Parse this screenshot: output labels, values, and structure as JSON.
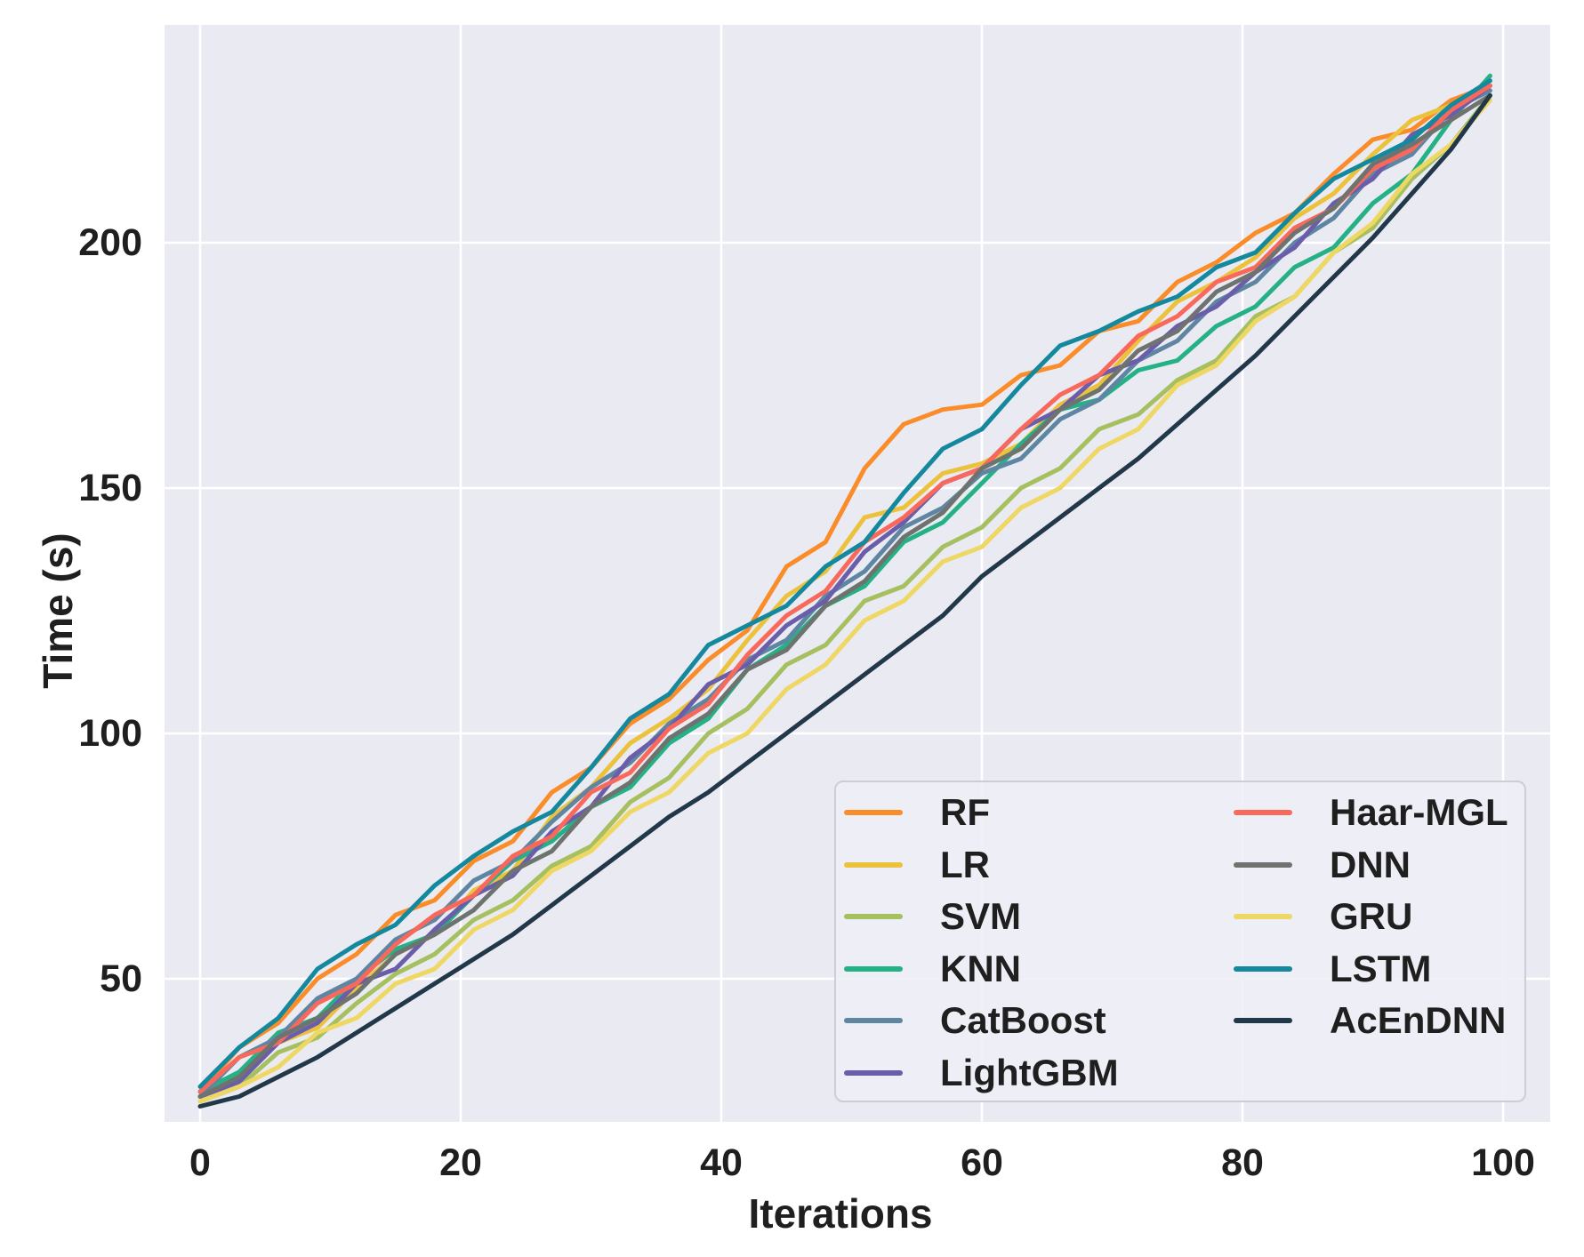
{
  "figure": {
    "plot_background": "#eaeaf2",
    "grid_color": "#ffffff",
    "text_color": "#1f1f1f",
    "outer_background": "#ffffff"
  },
  "chart_data": {
    "type": "line",
    "title": "",
    "xlabel": "Iterations",
    "ylabel": "Time (s)",
    "xlim": [
      -2.7,
      103.6
    ],
    "ylim": [
      21,
      244
    ],
    "xticks": [
      0,
      20,
      40,
      60,
      80,
      100
    ],
    "yticks": [
      50,
      100,
      150,
      200
    ],
    "grid": true,
    "legend_position": "lower right",
    "legend_columns": 2,
    "x": [
      0,
      3,
      6,
      9,
      12,
      15,
      18,
      21,
      24,
      27,
      30,
      33,
      36,
      39,
      42,
      45,
      48,
      51,
      54,
      57,
      60,
      63,
      66,
      69,
      72,
      75,
      78,
      81,
      84,
      87,
      90,
      93,
      96,
      99
    ],
    "series": [
      {
        "name": "RF",
        "color": "#fa8c29",
        "values": [
          27,
          36,
          41,
          50,
          55,
          63,
          66,
          74,
          78,
          88,
          93,
          102,
          107,
          115,
          121,
          134,
          139,
          154,
          163,
          166,
          167,
          173,
          175,
          182,
          184,
          192,
          196,
          202,
          206,
          214,
          221,
          223,
          229,
          232
        ]
      },
      {
        "name": "LR",
        "color": "#ecc23d",
        "values": [
          26,
          30,
          37,
          40,
          48,
          55,
          59,
          68,
          72,
          83,
          89,
          98,
          103,
          109,
          119,
          128,
          133,
          144,
          146,
          153,
          155,
          159,
          167,
          171,
          180,
          188,
          192,
          197,
          205,
          210,
          218,
          225,
          228,
          231
        ]
      },
      {
        "name": "SVM",
        "color": "#a6c060",
        "values": [
          25,
          28,
          35,
          38,
          45,
          51,
          55,
          62,
          66,
          73,
          77,
          86,
          91,
          100,
          105,
          114,
          118,
          127,
          130,
          138,
          142,
          150,
          154,
          162,
          165,
          172,
          176,
          185,
          189,
          198,
          203,
          213,
          220,
          230
        ]
      },
      {
        "name": "KNN",
        "color": "#25b186",
        "values": [
          27,
          31,
          39,
          42,
          50,
          56,
          59,
          67,
          74,
          78,
          85,
          89,
          98,
          103,
          113,
          118,
          126,
          130,
          139,
          143,
          151,
          159,
          166,
          168,
          174,
          176,
          183,
          187,
          195,
          199,
          208,
          214,
          225,
          234
        ]
      },
      {
        "name": "CatBoost",
        "color": "#5e86a3",
        "values": [
          26,
          34,
          38,
          46,
          50,
          58,
          62,
          70,
          74,
          82,
          89,
          94,
          102,
          107,
          115,
          119,
          128,
          133,
          142,
          146,
          153,
          156,
          164,
          168,
          176,
          180,
          188,
          192,
          200,
          205,
          214,
          218,
          227,
          231
        ]
      },
      {
        "name": "LightGBM",
        "color": "#6a5da9",
        "values": [
          26,
          29,
          37,
          41,
          49,
          52,
          60,
          67,
          71,
          80,
          85,
          95,
          101,
          110,
          114,
          122,
          127,
          137,
          143,
          151,
          154,
          162,
          166,
          173,
          176,
          183,
          187,
          194,
          199,
          208,
          213,
          222,
          226,
          232
        ]
      },
      {
        "name": "Haar-MGL",
        "color": "#f8695c",
        "values": [
          27,
          34,
          37,
          45,
          49,
          57,
          63,
          67,
          75,
          79,
          88,
          92,
          101,
          106,
          116,
          124,
          129,
          139,
          144,
          151,
          154,
          162,
          169,
          173,
          181,
          185,
          192,
          195,
          203,
          207,
          215,
          219,
          227,
          232
        ]
      },
      {
        "name": "DNN",
        "color": "#6e736f",
        "values": [
          26,
          30,
          38,
          42,
          47,
          55,
          59,
          64,
          72,
          76,
          85,
          90,
          99,
          104,
          113,
          117,
          126,
          131,
          140,
          145,
          154,
          158,
          166,
          170,
          178,
          182,
          190,
          194,
          202,
          207,
          216,
          220,
          225,
          230
        ]
      },
      {
        "name": "GRU",
        "color": "#eed763",
        "values": [
          25,
          28,
          32,
          39,
          42,
          49,
          52,
          60,
          64,
          72,
          76,
          84,
          88,
          96,
          100,
          109,
          114,
          123,
          127,
          135,
          138,
          146,
          150,
          158,
          162,
          171,
          175,
          184,
          189,
          198,
          204,
          214,
          220,
          229
        ]
      },
      {
        "name": "LSTM",
        "color": "#14889d",
        "values": [
          28,
          36,
          42,
          52,
          57,
          61,
          69,
          75,
          80,
          84,
          93,
          103,
          108,
          118,
          122,
          126,
          134,
          139,
          149,
          158,
          162,
          171,
          179,
          182,
          186,
          189,
          195,
          198,
          206,
          213,
          217,
          221,
          228,
          233
        ]
      },
      {
        "name": "AcEnDNN",
        "color": "#20384a",
        "values": [
          24,
          26,
          30,
          34,
          39,
          44,
          49,
          54,
          59,
          65,
          71,
          77,
          83,
          88,
          94,
          100,
          106,
          112,
          118,
          124,
          132,
          138,
          144,
          150,
          156,
          163,
          170,
          177,
          185,
          193,
          201,
          210,
          219,
          230
        ]
      }
    ]
  },
  "legend": {
    "columns": [
      [
        "RF",
        "LR",
        "SVM",
        "KNN",
        "CatBoost",
        "LightGBM"
      ],
      [
        "Haar-MGL",
        "DNN",
        "GRU",
        "LSTM",
        "AcEnDNN"
      ]
    ]
  }
}
